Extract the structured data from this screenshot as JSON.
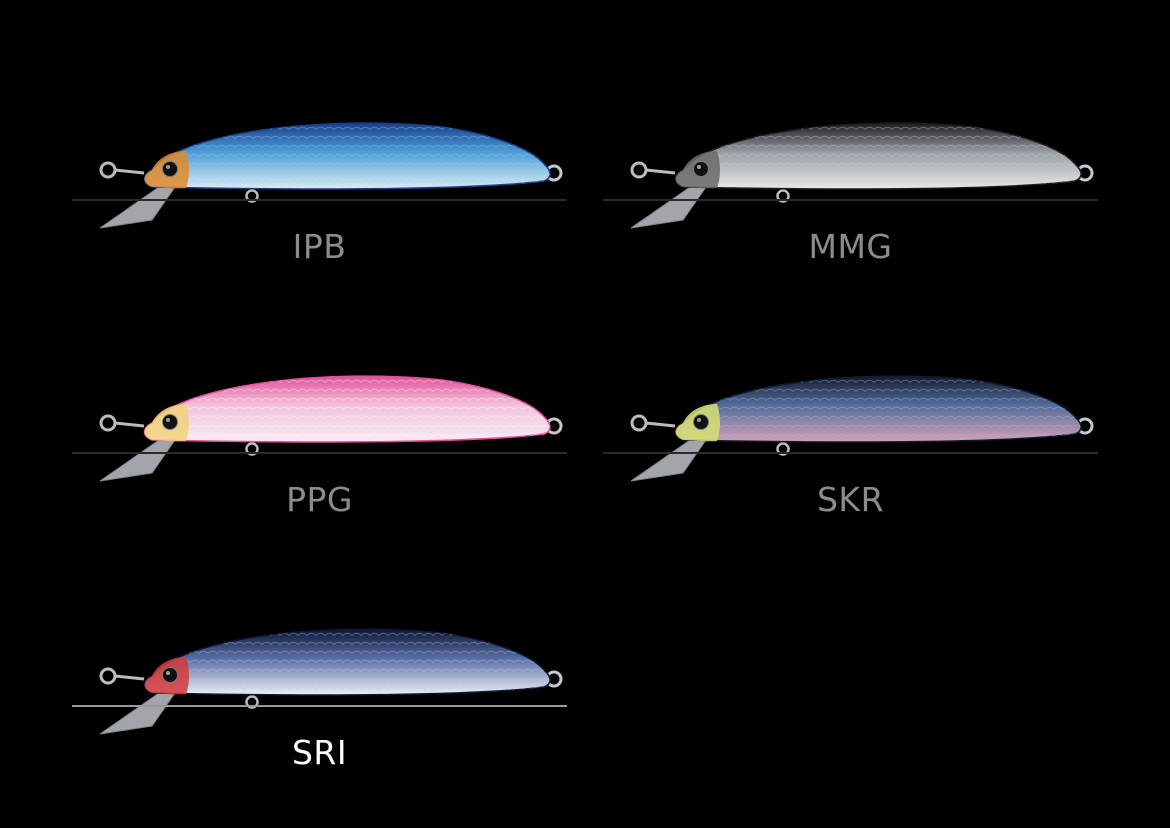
{
  "colors": [
    {
      "code": "IPB",
      "selected": false,
      "back": "#1a3f8a",
      "mid": "#4d9fd8",
      "belly": "#dcecf5",
      "head": "#e08a2a",
      "scale": "#8fd0f2"
    },
    {
      "code": "MMG",
      "selected": false,
      "back": "#1c1c1c",
      "mid": "#9aa0a6",
      "belly": "#e8e8e8",
      "head": "#6a6a6a",
      "scale": "#cfd3d6"
    },
    {
      "code": "PPG",
      "selected": false,
      "back": "#e0509a",
      "mid": "#f2c4dc",
      "belly": "#fbe9f2",
      "head": "#f1d27a",
      "scale": "#ffffff"
    },
    {
      "code": "SKR",
      "selected": false,
      "back": "#101a2e",
      "mid": "#566e9a",
      "belly": "#d7a0b6",
      "head": "#d6e072",
      "scale": "#9fc0e6"
    },
    {
      "code": "SRI",
      "selected": true,
      "back": "#0d1735",
      "mid": "#5a6fa8",
      "belly": "#eef0f4",
      "head": "#d43a3a",
      "scale": "#b9c6e4"
    }
  ]
}
